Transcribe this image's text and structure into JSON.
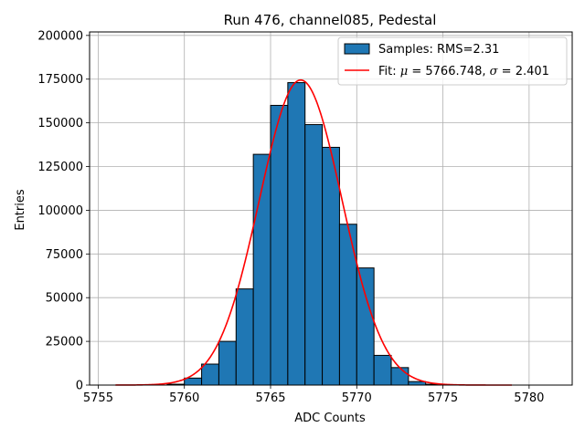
{
  "chart_data": {
    "type": "bar",
    "title": "Run 476, channel085, Pedestal",
    "xlabel": "ADC Counts",
    "ylabel": "Entries",
    "xlim": [
      5754.5,
      5782.5
    ],
    "ylim": [
      0,
      202000
    ],
    "xticks": [
      5755,
      5760,
      5765,
      5770,
      5775,
      5780
    ],
    "yticks": [
      0,
      25000,
      50000,
      75000,
      100000,
      125000,
      150000,
      175000,
      200000
    ],
    "grid": true,
    "legend_position": "top-right",
    "histogram": {
      "name": "Samples: RMS=2.31",
      "color": "#1f77b4",
      "edge_color": "#000000",
      "bins": [
        {
          "x0": 5759.0,
          "x1": 5760.0,
          "count": 500
        },
        {
          "x0": 5760.0,
          "x1": 5761.0,
          "count": 4000
        },
        {
          "x0": 5761.0,
          "x1": 5762.0,
          "count": 12000
        },
        {
          "x0": 5762.0,
          "x1": 5763.0,
          "count": 25000
        },
        {
          "x0": 5763.0,
          "x1": 5764.0,
          "count": 55000
        },
        {
          "x0": 5764.0,
          "x1": 5765.0,
          "count": 132000
        },
        {
          "x0": 5765.0,
          "x1": 5766.0,
          "count": 160000
        },
        {
          "x0": 5766.0,
          "x1": 5767.0,
          "count": 173000
        },
        {
          "x0": 5767.0,
          "x1": 5768.0,
          "count": 149000
        },
        {
          "x0": 5768.0,
          "x1": 5769.0,
          "count": 136000
        },
        {
          "x0": 5769.0,
          "x1": 5770.0,
          "count": 92000
        },
        {
          "x0": 5770.0,
          "x1": 5771.0,
          "count": 67000
        },
        {
          "x0": 5771.0,
          "x1": 5772.0,
          "count": 17000
        },
        {
          "x0": 5772.0,
          "x1": 5773.0,
          "count": 10000
        },
        {
          "x0": 5773.0,
          "x1": 5774.0,
          "count": 2000
        },
        {
          "x0": 5774.0,
          "x1": 5775.0,
          "count": 500
        }
      ]
    },
    "fit": {
      "name": "Fit: μ = 5766.748, σ = 2.401",
      "color": "#ff0000",
      "mu": 5766.748,
      "sigma": 2.401,
      "amplitude": 174500,
      "x_range": [
        5756,
        5779
      ]
    }
  }
}
